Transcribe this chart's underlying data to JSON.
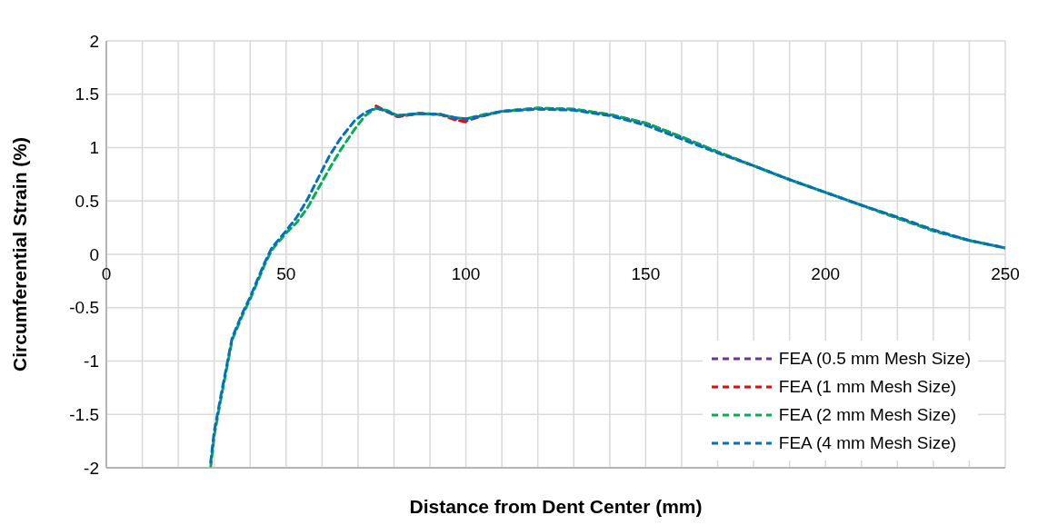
{
  "chart_data": {
    "type": "line",
    "xlabel": "Distance from Dent Center (mm)",
    "ylabel": "Circumferential Strain (%)",
    "xlim": [
      0,
      250
    ],
    "ylim": [
      -2,
      2
    ],
    "xticks": [
      0,
      {
        "value": 10,
        "label": null
      },
      {
        "value": 20,
        "label": null
      },
      {
        "value": 30,
        "label": null
      },
      {
        "value": 40,
        "label": null
      },
      50,
      {
        "value": 60,
        "label": null
      },
      {
        "value": 70,
        "label": null
      },
      {
        "value": 80,
        "label": null
      },
      {
        "value": 90,
        "label": null
      },
      100,
      {
        "value": 110,
        "label": null
      },
      {
        "value": 120,
        "label": null
      },
      {
        "value": 130,
        "label": null
      },
      {
        "value": 140,
        "label": null
      },
      150,
      {
        "value": 160,
        "label": null
      },
      {
        "value": 170,
        "label": null
      },
      {
        "value": 180,
        "label": null
      },
      {
        "value": 190,
        "label": null
      },
      200,
      {
        "value": 210,
        "label": null
      },
      {
        "value": 220,
        "label": null
      },
      {
        "value": 230,
        "label": null
      },
      {
        "value": 240,
        "label": null
      },
      250
    ],
    "yticks": [
      -2,
      -1.5,
      -1,
      -0.5,
      0,
      0.5,
      1,
      1.5,
      2
    ],
    "grid": true,
    "legend": "bottom right",
    "marker": "none",
    "line_style": "dashed",
    "x": [
      29,
      30,
      32,
      35,
      38,
      40,
      44,
      46,
      50,
      53,
      56,
      59,
      62,
      65,
      69,
      72,
      75,
      78,
      81,
      87,
      93,
      97,
      100,
      105,
      110,
      120,
      130,
      140,
      150,
      160,
      170,
      180,
      190,
      200,
      210,
      220,
      230,
      240,
      250
    ],
    "series": [
      {
        "name": "FEA (0.5 mm Mesh Size)",
        "color": "#7030a0",
        "values": [
          null,
          null,
          null,
          null,
          null,
          null,
          null,
          null,
          null,
          null,
          null,
          null,
          null,
          null,
          null,
          null,
          null,
          1.34,
          1.29,
          1.32,
          1.31,
          1.27,
          1.25,
          1.3,
          1.34,
          1.37,
          1.36,
          1.31,
          1.23,
          1.1,
          0.96,
          0.83,
          0.7,
          0.58,
          0.46,
          0.34,
          0.22,
          0.13,
          0.06
        ]
      },
      {
        "name": "FEA (1 mm Mesh Size)",
        "color": "#ff0000",
        "values": [
          null,
          null,
          null,
          null,
          null,
          null,
          null,
          null,
          null,
          null,
          null,
          null,
          null,
          null,
          null,
          null,
          1.39,
          1.34,
          1.29,
          1.32,
          1.31,
          1.26,
          1.24,
          null,
          null,
          null,
          null,
          null,
          null,
          null,
          null,
          null,
          null,
          null,
          null,
          null,
          null,
          null,
          null
        ]
      },
      {
        "name": "FEA (2 mm Mesh Size)",
        "color": "#00b050",
        "values": [
          -2,
          -1.7,
          -1.33,
          -0.8,
          -0.56,
          -0.42,
          -0.1,
          0.04,
          0.2,
          0.3,
          0.44,
          0.62,
          0.8,
          0.97,
          1.17,
          1.3,
          1.37,
          1.35,
          1.3,
          1.32,
          1.31,
          1.28,
          1.27,
          1.31,
          1.34,
          1.37,
          1.36,
          1.31,
          1.23,
          1.1,
          0.96,
          0.83,
          0.7,
          0.58,
          0.46,
          0.34,
          0.22,
          0.13,
          0.06
        ]
      },
      {
        "name": "FEA (4 mm Mesh Size)",
        "color": "#0070c0",
        "values": [
          -1.95,
          -1.66,
          -1.3,
          -0.78,
          -0.54,
          -0.4,
          -0.08,
          0.06,
          0.22,
          0.35,
          0.52,
          0.72,
          0.92,
          1.08,
          1.25,
          1.33,
          1.37,
          1.34,
          1.3,
          1.32,
          1.31,
          1.28,
          1.27,
          1.3,
          1.34,
          1.36,
          1.35,
          1.3,
          1.21,
          1.08,
          0.95,
          0.83,
          0.7,
          0.58,
          0.46,
          0.35,
          0.23,
          0.13,
          0.06
        ]
      }
    ]
  }
}
